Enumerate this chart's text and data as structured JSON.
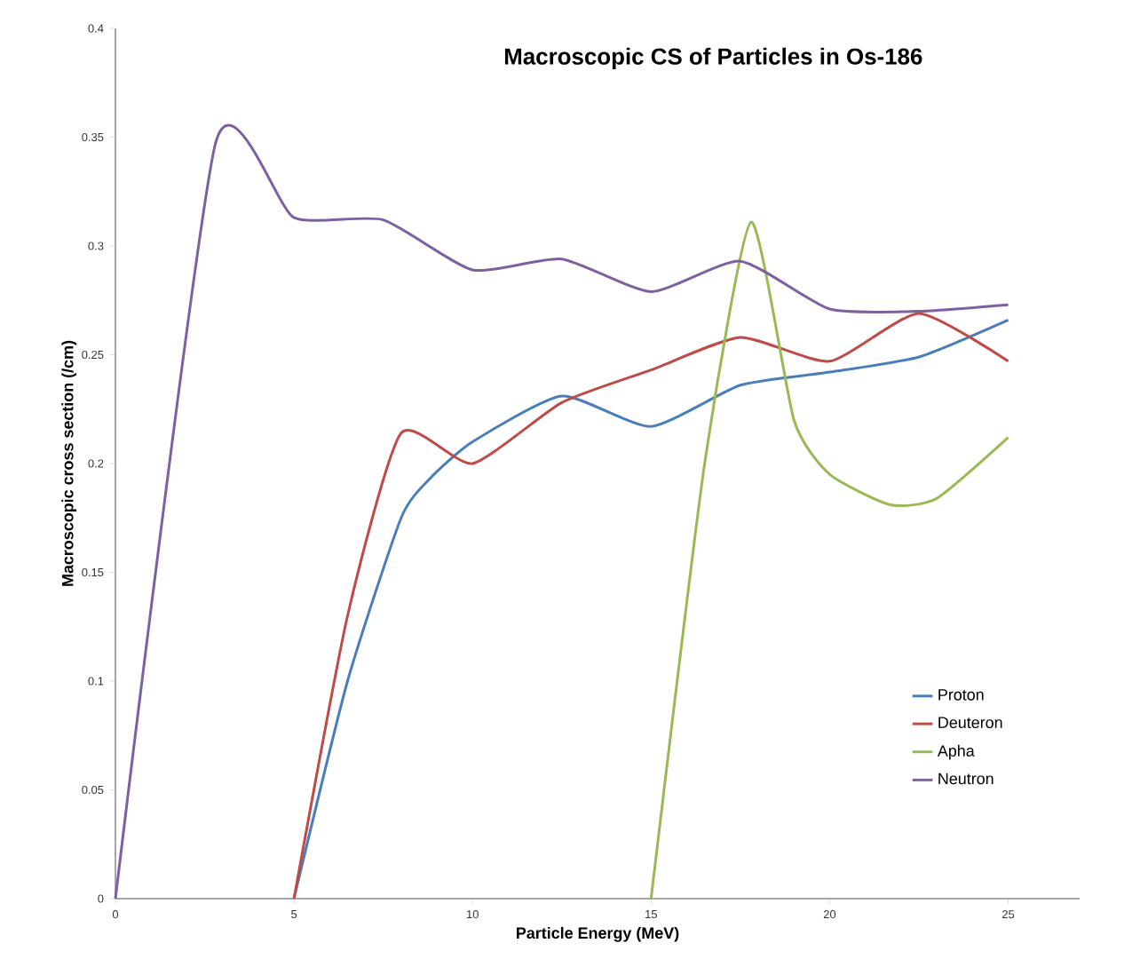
{
  "chart_data": {
    "type": "line",
    "title": "Macroscopic CS of Particles in Os-186",
    "xlabel": "Particle Energy (MeV)",
    "ylabel": "Macroscopic cross section (/cm)",
    "xlim": [
      0,
      27
    ],
    "xticks": [
      0,
      5,
      10,
      15,
      20,
      25
    ],
    "ylim": [
      0,
      0.4
    ],
    "yticks": [
      0,
      0.05,
      0.1,
      0.15,
      0.2,
      0.25,
      0.3,
      0.35,
      0.4
    ],
    "grid": false,
    "legend": "bottom right",
    "marker": "none",
    "line_style": "solid",
    "series": [
      {
        "name": "Proton",
        "color": "#4a7ebb",
        "x": [
          5,
          6.5,
          8,
          8.8,
          10,
          12.5,
          15,
          17.5,
          20,
          22.5,
          25
        ],
        "values": [
          0,
          0.1,
          0.175,
          0.193,
          0.21,
          0.231,
          0.217,
          0.236,
          0.242,
          0.249,
          0.266
        ]
      },
      {
        "name": "Deuteron",
        "color": "#be4b48",
        "x": [
          5,
          6.5,
          8,
          10,
          12.5,
          15,
          17.5,
          20,
          22.5,
          25
        ],
        "values": [
          0,
          0.13,
          0.214,
          0.2,
          0.228,
          0.243,
          0.258,
          0.247,
          0.269,
          0.247
        ]
      },
      {
        "name": "Apha",
        "color": "#98b954",
        "x": [
          15,
          16.5,
          17.8,
          19,
          20,
          21.7,
          23,
          25
        ],
        "values": [
          0,
          0.2,
          0.311,
          0.22,
          0.195,
          0.181,
          0.184,
          0.212
        ]
      },
      {
        "name": "Neutron",
        "color": "#7d60a0",
        "x": [
          0,
          2.8,
          5,
          7.5,
          10,
          12.5,
          15,
          17.5,
          20,
          22.5,
          25
        ],
        "values": [
          0,
          0.347,
          0.313,
          0.312,
          0.289,
          0.294,
          0.279,
          0.293,
          0.271,
          0.27,
          0.273
        ]
      }
    ]
  }
}
